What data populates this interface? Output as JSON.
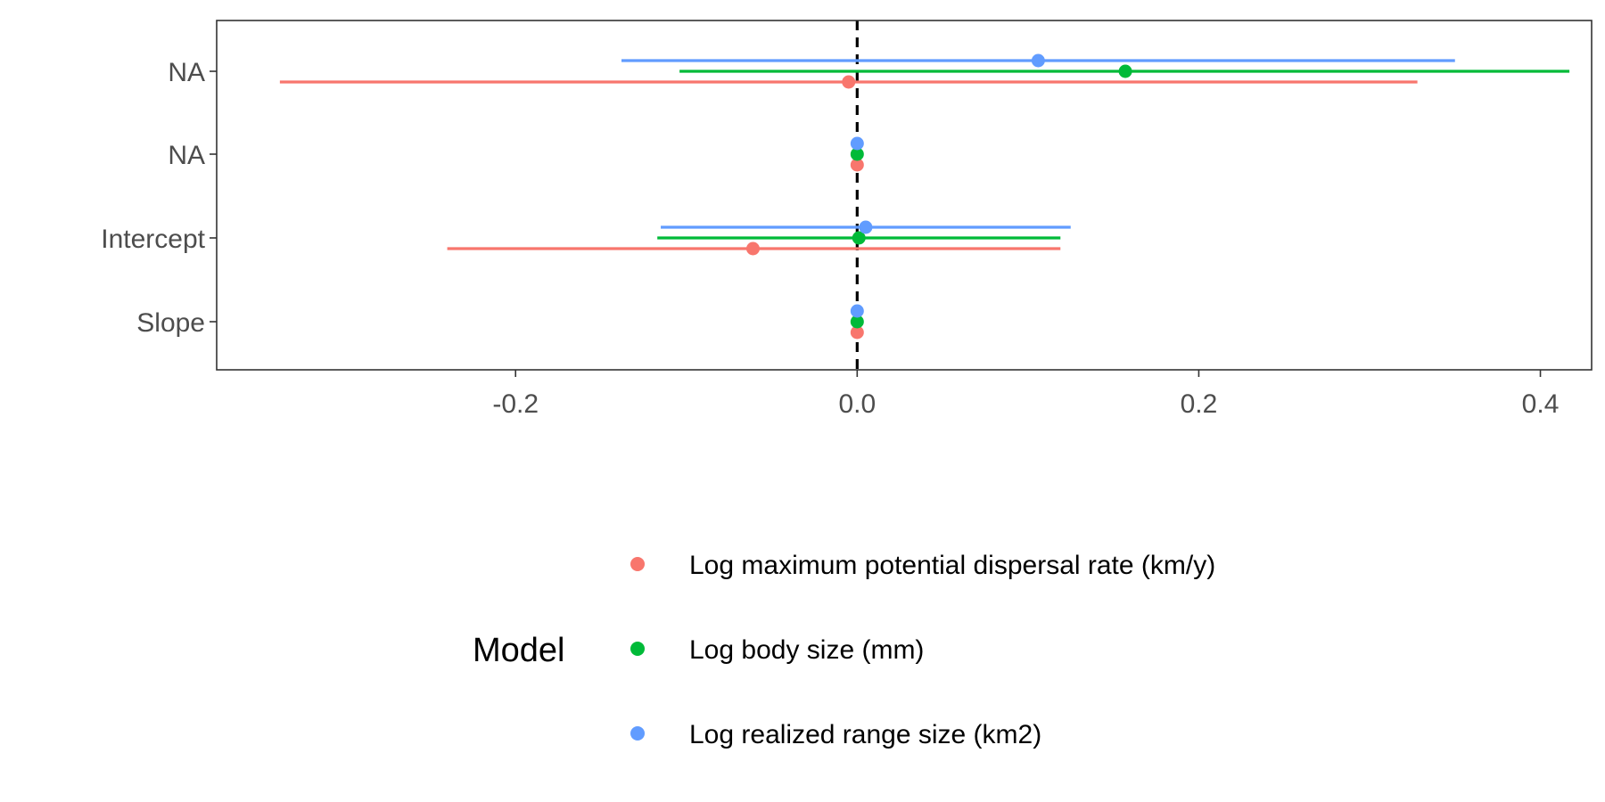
{
  "chart_data": {
    "type": "forest",
    "title": "",
    "xlabel": "",
    "ylabel": "",
    "xlim": [
      -0.375,
      0.43
    ],
    "x_ticks": [
      {
        "value": -0.2,
        "label": "-0.2"
      },
      {
        "value": 0.0,
        "label": "0.0"
      },
      {
        "value": 0.2,
        "label": "0.2"
      },
      {
        "value": 0.4,
        "label": "0.4"
      }
    ],
    "categories": [
      "NA",
      "NA",
      "Intercept",
      "Slope"
    ],
    "reference_line": {
      "x": 0,
      "style": "dashed"
    },
    "grid": false,
    "legend": {
      "title": "Model",
      "placement": "bottom"
    },
    "series": [
      {
        "name": "Log maximum potential dispersal rate (km/y)",
        "color": "#F8766D",
        "points": [
          {
            "category": "NA",
            "estimate": -0.005,
            "low": -0.338,
            "high": 0.328
          },
          {
            "category": "NA",
            "estimate": 0.0,
            "low": 0.0,
            "high": 0.0
          },
          {
            "category": "Intercept",
            "estimate": -0.061,
            "low": -0.24,
            "high": 0.119
          },
          {
            "category": "Slope",
            "estimate": 0.0,
            "low": 0.0,
            "high": 0.0
          }
        ]
      },
      {
        "name": "Log body size (mm)",
        "color": "#00BA38",
        "points": [
          {
            "category": "NA",
            "estimate": 0.157,
            "low": -0.104,
            "high": 0.417
          },
          {
            "category": "NA",
            "estimate": 0.0,
            "low": 0.0,
            "high": 0.0
          },
          {
            "category": "Intercept",
            "estimate": 0.001,
            "low": -0.117,
            "high": 0.119
          },
          {
            "category": "Slope",
            "estimate": 0.0,
            "low": 0.0,
            "high": 0.0
          }
        ]
      },
      {
        "name": "Log realized range size (km2)",
        "color": "#619CFF",
        "points": [
          {
            "category": "NA",
            "estimate": 0.106,
            "low": -0.138,
            "high": 0.35
          },
          {
            "category": "NA",
            "estimate": 0.0,
            "low": 0.0,
            "high": 0.0
          },
          {
            "category": "Intercept",
            "estimate": 0.005,
            "low": -0.115,
            "high": 0.125
          },
          {
            "category": "Slope",
            "estimate": 0.0,
            "low": 0.0,
            "high": 0.0
          }
        ]
      }
    ]
  }
}
